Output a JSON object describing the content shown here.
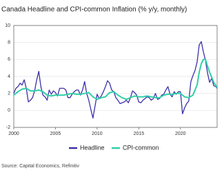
{
  "chart_data": {
    "type": "line",
    "title": "Canada Headline and CPI-common Inflation (% y/y, monthly)",
    "source": "Source: Capital Economics, Refinitiv",
    "xlim": [
      2000,
      2024.4
    ],
    "xticks": [
      2000,
      2005,
      2010,
      2015,
      2020
    ],
    "ylim": [
      -2,
      10
    ],
    "yticks": [
      -2,
      0,
      2,
      4,
      6,
      8,
      10
    ],
    "grid": true,
    "series": [
      {
        "name": "Headline",
        "color": "#3b2fa8",
        "x": [
          2000,
          2000.25,
          2000.5,
          2000.75,
          2001,
          2001.25,
          2001.5,
          2001.75,
          2002,
          2002.25,
          2002.5,
          2002.75,
          2003,
          2003.25,
          2003.5,
          2003.75,
          2004,
          2004.25,
          2004.5,
          2004.75,
          2005,
          2005.25,
          2005.5,
          2005.75,
          2006,
          2006.25,
          2006.5,
          2006.75,
          2007,
          2007.25,
          2007.5,
          2007.75,
          2008,
          2008.25,
          2008.5,
          2008.75,
          2009,
          2009.25,
          2009.5,
          2009.75,
          2010,
          2010.25,
          2010.5,
          2010.75,
          2011,
          2011.25,
          2011.5,
          2011.75,
          2012,
          2012.25,
          2012.5,
          2012.75,
          2013,
          2013.25,
          2013.5,
          2013.75,
          2014,
          2014.25,
          2014.5,
          2014.75,
          2015,
          2015.25,
          2015.5,
          2015.75,
          2016,
          2016.25,
          2016.5,
          2016.75,
          2017,
          2017.25,
          2017.5,
          2017.75,
          2018,
          2018.25,
          2018.5,
          2018.75,
          2019,
          2019.25,
          2019.5,
          2019.75,
          2020,
          2020.25,
          2020.5,
          2020.75,
          2021,
          2021.25,
          2021.5,
          2021.75,
          2022,
          2022.25,
          2022.5,
          2022.75,
          2023,
          2023.25,
          2023.5,
          2023.75,
          2024,
          2024.25,
          2024.4
        ],
        "values": [
          2.0,
          2.6,
          2.8,
          3.2,
          3.0,
          3.6,
          2.6,
          1.0,
          1.2,
          1.5,
          2.3,
          3.6,
          4.6,
          2.8,
          1.8,
          1.6,
          1.2,
          2.4,
          1.9,
          2.3,
          2.1,
          1.7,
          2.6,
          2.6,
          2.6,
          2.4,
          1.5,
          1.5,
          1.9,
          2.2,
          2.4,
          2.4,
          1.8,
          2.4,
          3.4,
          2.0,
          1.2,
          0.1,
          -0.9,
          0.5,
          1.9,
          1.4,
          1.7,
          2.2,
          2.8,
          3.5,
          3.2,
          2.4,
          2.2,
          1.5,
          1.2,
          0.8,
          0.9,
          1.0,
          1.2,
          0.9,
          1.5,
          2.3,
          2.1,
          1.8,
          1.0,
          0.9,
          1.2,
          1.4,
          1.6,
          1.5,
          1.2,
          1.4,
          2.0,
          1.3,
          1.4,
          1.8,
          1.9,
          2.4,
          2.8,
          1.9,
          1.6,
          2.2,
          1.9,
          2.2,
          2.2,
          -0.4,
          0.3,
          0.8,
          1.1,
          3.4,
          4.1,
          4.7,
          5.7,
          7.7,
          8.1,
          6.9,
          5.9,
          4.4,
          3.3,
          3.8,
          2.9,
          2.8,
          2.6
        ]
      },
      {
        "name": "CPI-common",
        "color": "#2fcfa6",
        "x": [
          2000,
          2000.5,
          2001,
          2001.5,
          2002,
          2002.5,
          2003,
          2003.5,
          2004,
          2004.5,
          2005,
          2005.5,
          2006,
          2006.5,
          2007,
          2007.5,
          2008,
          2008.5,
          2009,
          2009.5,
          2010,
          2010.5,
          2011,
          2011.5,
          2012,
          2012.5,
          2013,
          2013.5,
          2014,
          2014.5,
          2015,
          2015.5,
          2016,
          2016.5,
          2017,
          2017.5,
          2018,
          2018.5,
          2019,
          2019.5,
          2020,
          2020.5,
          2021,
          2021.5,
          2022,
          2022.25,
          2022.5,
          2022.75,
          2023,
          2023.25,
          2023.5,
          2023.75,
          2024,
          2024.4
        ],
        "values": [
          1.8,
          2.2,
          2.5,
          2.6,
          2.3,
          2.3,
          2.4,
          2.2,
          1.8,
          1.7,
          1.8,
          1.8,
          1.8,
          1.9,
          2.0,
          1.9,
          1.9,
          2.0,
          2.1,
          1.6,
          1.3,
          1.5,
          1.6,
          2.1,
          2.2,
          1.8,
          1.5,
          1.3,
          1.5,
          1.7,
          1.6,
          1.6,
          1.7,
          1.6,
          1.5,
          1.5,
          1.8,
          1.9,
          1.9,
          2.0,
          2.0,
          1.6,
          1.5,
          1.8,
          3.0,
          4.5,
          5.5,
          6.0,
          6.0,
          5.2,
          4.5,
          3.9,
          3.3,
          2.7
        ]
      }
    ]
  }
}
